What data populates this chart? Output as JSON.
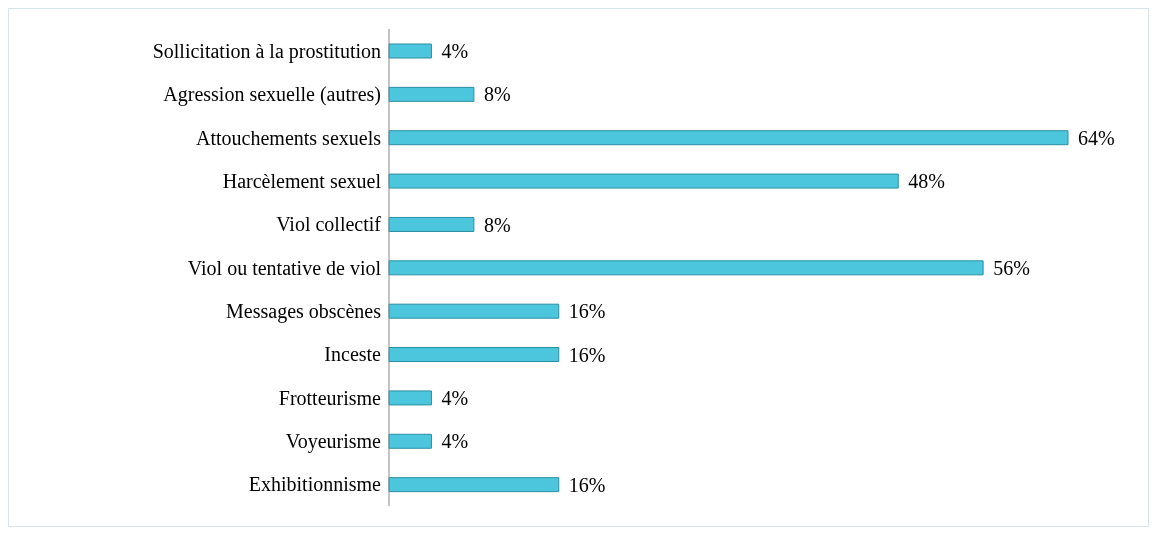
{
  "chart_data": {
    "type": "bar",
    "orientation": "horizontal",
    "categories": [
      "Sollicitation à la prostitution",
      "Agression sexuelle (autres)",
      "Attouchements sexuels",
      "Harcèlement sexuel",
      "Viol collectif",
      "Viol ou tentative de viol",
      "Messages obscènes",
      "Inceste",
      "Frotteurisme",
      "Voyeurisme",
      "Exhibitionnisme"
    ],
    "values": [
      4,
      8,
      64,
      48,
      8,
      56,
      16,
      16,
      4,
      4,
      16
    ],
    "value_labels": [
      "4%",
      "8%",
      "64%",
      "48%",
      "8%",
      "56%",
      "16%",
      "16%",
      "4%",
      "4%",
      "16%"
    ],
    "color": "#4cc6dc",
    "grid": false,
    "legend": false
  }
}
